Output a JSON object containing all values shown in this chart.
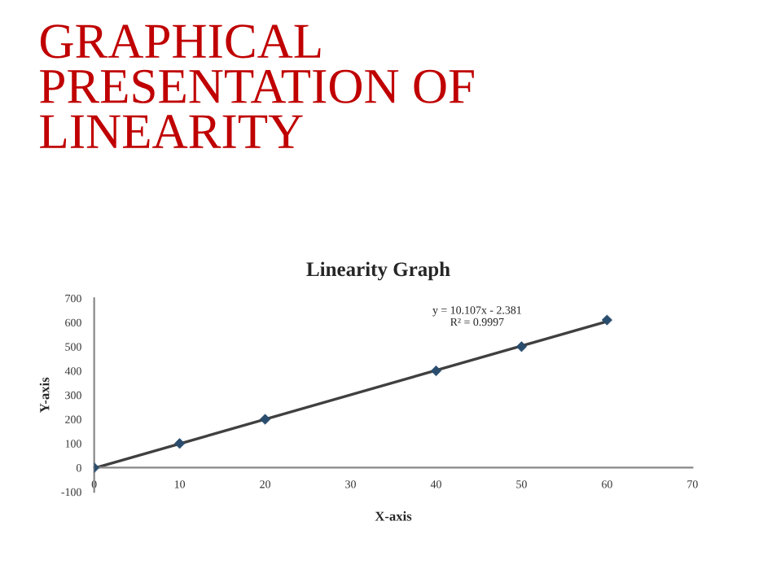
{
  "chart_data": {
    "type": "line",
    "title": "GRAPHICAL\nPRESENTATION OF\nLINEARITY",
    "subtitle": "Linearity Graph",
    "xlabel": "X-axis",
    "ylabel": "Y-axis",
    "x": [
      0,
      10,
      20,
      40,
      50,
      60
    ],
    "series": [
      {
        "type": "scatter",
        "color": "#2a4d6e",
        "values": [
          0,
          100,
          200,
          400,
          500,
          610
        ],
        "marker": "diamond"
      },
      {
        "color": "#404040",
        "x": [
          0,
          60
        ],
        "values": [
          -2,
          604
        ],
        "marker": "none",
        "line_style": "solid"
      }
    ],
    "annotations": [
      "y = 10.107x - 2.381",
      "R² = 0.9997"
    ],
    "xlim": [
      0,
      70
    ],
    "xticks": [
      0,
      10,
      20,
      30,
      40,
      50,
      60,
      70
    ],
    "ylim": [
      -100,
      700
    ],
    "yticks": [
      -100,
      0,
      100,
      200,
      300,
      400,
      500,
      600,
      700
    ],
    "grid": false,
    "legend": false
  }
}
